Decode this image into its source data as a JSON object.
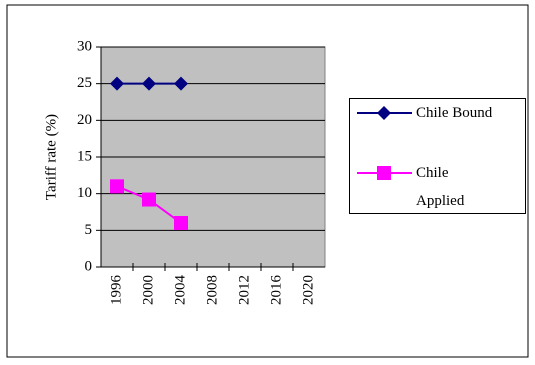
{
  "chart_data": {
    "type": "line",
    "y_label": "Tariff rate (%)",
    "categories": [
      "1996",
      "2000",
      "2004",
      "2008",
      "2012",
      "2016",
      "2020"
    ],
    "series": [
      {
        "name": "Chile Bound",
        "color": "#000080",
        "marker": "diamond",
        "values": [
          25,
          25,
          25,
          null,
          null,
          null,
          null
        ]
      },
      {
        "name": "Chile Applied",
        "color": "#ff00ff",
        "marker": "square",
        "values": [
          11,
          9.2,
          6,
          null,
          null,
          null,
          null
        ]
      }
    ],
    "ylim": [
      0,
      30
    ],
    "yticks": [
      0,
      5,
      10,
      15,
      20,
      25,
      30
    ],
    "grid": true,
    "legend": "right"
  }
}
